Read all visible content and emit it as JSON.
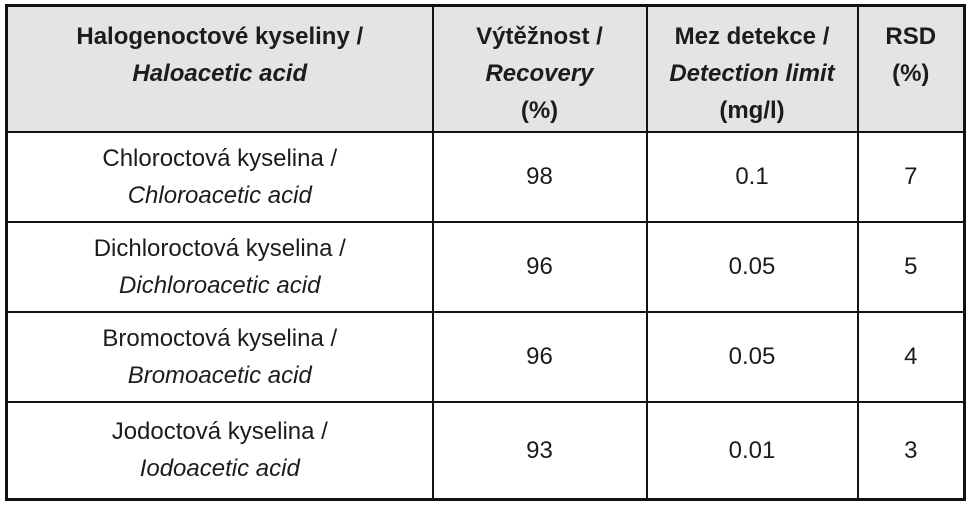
{
  "colors": {
    "header_bg": "#e4e4e4",
    "border": "#121212",
    "text": "#1c1c1c",
    "page_bg": "#ffffff"
  },
  "table": {
    "columns": [
      {
        "header_cs": "Halogenoctové kyseliny /",
        "header_en": "Haloacetic acid",
        "unit": ""
      },
      {
        "header_cs": "Výtěžnost /",
        "header_en": "Recovery",
        "unit": "(%)"
      },
      {
        "header_cs": "Mez detekce /",
        "header_en": "Detection limit",
        "unit": "(mg/l)"
      },
      {
        "header_cs": "RSD",
        "header_en": "",
        "unit": "(%)"
      }
    ],
    "rows": [
      {
        "acid_cs": "Chloroctová kyselina /",
        "acid_en": "Chloroacetic acid",
        "recovery_pct": "98",
        "detection_limit_mg_l": "0.1",
        "rsd_pct": "7"
      },
      {
        "acid_cs": "Dichloroctová kyselina /",
        "acid_en": "Dichloroacetic acid",
        "recovery_pct": "96",
        "detection_limit_mg_l": "0.05",
        "rsd_pct": "5"
      },
      {
        "acid_cs": "Bromoctová kyselina /",
        "acid_en": "Bromoacetic acid",
        "recovery_pct": "96",
        "detection_limit_mg_l": "0.05",
        "rsd_pct": "4"
      },
      {
        "acid_cs": "Jodoctová kyselina /",
        "acid_en": "Iodoacetic acid",
        "recovery_pct": "93",
        "detection_limit_mg_l": "0.01",
        "rsd_pct": "3"
      }
    ]
  }
}
